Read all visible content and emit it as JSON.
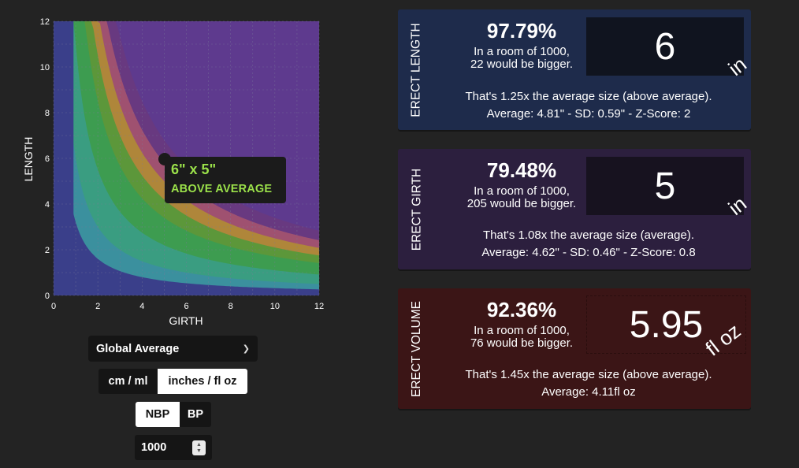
{
  "chart_data": {
    "type": "heatmap",
    "xlabel": "GIRTH",
    "ylabel": "LENGTH",
    "xlim": [
      0,
      12
    ],
    "ylim": [
      0,
      12
    ],
    "x_ticks": [
      "0",
      "2",
      "4",
      "6",
      "8",
      "10",
      "12"
    ],
    "y_ticks": [
      "0",
      "2",
      "4",
      "6",
      "8",
      "10",
      "12"
    ],
    "grid": true,
    "point": {
      "x": 5,
      "y": 6
    },
    "bands": [
      {
        "percentile": 0.05,
        "color": "#3c8ea3"
      },
      {
        "percentile": 0.2,
        "color": "#3a9d8a"
      },
      {
        "percentile": 0.5,
        "color": "#379c55"
      },
      {
        "percentile": 0.8,
        "color": "#4d9a3b"
      },
      {
        "percentile": 0.95,
        "color": "#b28f30"
      },
      {
        "percentile": 0.99,
        "color": "#a9566d"
      }
    ],
    "base_color": "#3a3f8a",
    "top_color": "#5e3a8e"
  },
  "tooltip": {
    "size": "6\" x 5\"",
    "label": "ABOVE AVERAGE"
  },
  "controls": {
    "preset": "Global Average",
    "units": [
      "cm / ml",
      "inches / fl oz"
    ],
    "units_active": 1,
    "bp": [
      "NBP",
      "BP"
    ],
    "bp_active": 0,
    "sample_size": "1000"
  },
  "cards": {
    "length": {
      "title": "ERECT LENGTH",
      "percent": "97.79%",
      "room_line1": "In a room of 1000,",
      "room_line2": "22 would be bigger.",
      "value": "6",
      "unit": "in",
      "comparison": "That's 1.25x the average size (above average).",
      "stats": "Average: 4.81\" - SD: 0.59\" - Z-Score: 2"
    },
    "girth": {
      "title": "ERECT GIRTH",
      "percent": "79.48%",
      "room_line1": "In a room of 1000,",
      "room_line2": "205 would be bigger.",
      "value": "5",
      "unit": "in",
      "comparison": "That's 1.08x the average size (average).",
      "stats": "Average: 4.62\" - SD: 0.46\" - Z-Score: 0.8"
    },
    "volume": {
      "title": "ERECT VOLUME",
      "percent": "92.36%",
      "room_line1": "In a room of 1000,",
      "room_line2": "76 would be bigger.",
      "value": "5.95",
      "unit": "fl oz",
      "comparison": "That's 1.45x the average size (above average).",
      "stats": "Average: 4.11fl oz"
    }
  }
}
